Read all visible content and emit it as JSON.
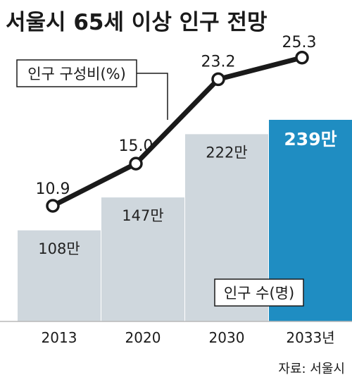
{
  "chart_data": {
    "type": "bar",
    "title": "서울시 65세 이상 인구 전망",
    "categories": [
      "2013",
      "2020",
      "2030",
      "2033년"
    ],
    "series": [
      {
        "name": "인구 수(명)",
        "type": "bar",
        "values": [
          1080000,
          1470000,
          2220000,
          2390000
        ],
        "labels": [
          "108만",
          "147만",
          "222만",
          "239만"
        ]
      },
      {
        "name": "인구 구성비(%)",
        "type": "line",
        "values": [
          10.9,
          15.0,
          23.2,
          25.3
        ],
        "labels": [
          "10.9",
          "15.0",
          "23.2",
          "25.3"
        ]
      }
    ],
    "source": "자료: 서울시",
    "colors": {
      "bar": "#cfd7dd",
      "bar_highlight": "#1f8dc2",
      "line": "#1a1a1a",
      "marker_fill": "#ffffff"
    }
  }
}
